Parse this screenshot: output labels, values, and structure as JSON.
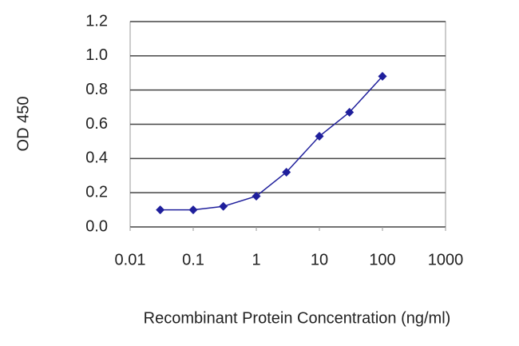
{
  "chart_data": {
    "type": "line",
    "xlabel": "Recombinant Protein Concentration (ng/ml)",
    "ylabel": "OD 450",
    "x": [
      0.03,
      0.1,
      0.3,
      1,
      3,
      10,
      30,
      100
    ],
    "series": [
      {
        "color": "#1f1f9c",
        "values": [
          0.1,
          0.1,
          0.12,
          0.18,
          0.32,
          0.53,
          0.67,
          0.88
        ]
      }
    ],
    "xscale": "log",
    "xlim": [
      0.01,
      1000
    ],
    "xticks": [
      0.01,
      0.1,
      1,
      10,
      100,
      1000
    ],
    "ylim": [
      0,
      1.2
    ],
    "yticks": [
      {
        "value": 0,
        "label": "0.0"
      },
      0.2,
      0.4,
      0.6,
      0.8,
      {
        "value": 1,
        "label": "1.0"
      },
      1.2
    ],
    "grid": true
  }
}
